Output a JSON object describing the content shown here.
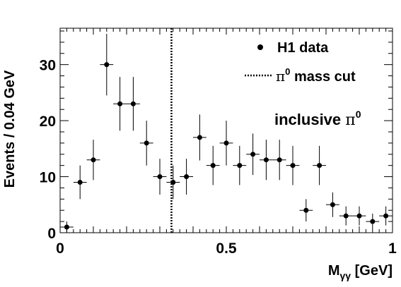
{
  "chart_data": {
    "type": "scatter",
    "title": "",
    "xlabel": "M",
    "xlabel_subscript": "γγ",
    "xlabel_unit": " [GeV]",
    "ylabel": "Events / 0.04 GeV",
    "xlim": [
      0,
      1
    ],
    "ylim": [
      0,
      36.5
    ],
    "x_ticks": [
      0,
      0.5,
      1
    ],
    "x_tick_labels": [
      "0",
      "0.5",
      "1"
    ],
    "y_ticks": [
      0,
      10,
      20,
      30
    ],
    "y_tick_labels": [
      "0",
      "10",
      "20",
      "30"
    ],
    "grid": false,
    "legend_position": "top-right",
    "legend": {
      "data_label": "H1 data",
      "cut_label_symbol": "π",
      "cut_label_superscript": "0",
      "cut_label_text": " mass cut"
    },
    "annotation": {
      "text": "inclusive π",
      "superscript": "0"
    },
    "cut_line_x": 0.335,
    "series": [
      {
        "name": "H1 data",
        "x": [
          0.02,
          0.06,
          0.1,
          0.14,
          0.18,
          0.22,
          0.26,
          0.3,
          0.34,
          0.38,
          0.42,
          0.46,
          0.5,
          0.54,
          0.58,
          0.62,
          0.66,
          0.7,
          0.74,
          0.78,
          0.82,
          0.86,
          0.9,
          0.94,
          0.98
        ],
        "y": [
          1,
          9,
          13,
          30,
          23,
          23,
          16,
          10,
          9,
          10,
          17,
          12,
          16,
          12,
          14,
          13,
          13,
          12,
          4,
          12,
          5,
          3,
          3,
          2,
          3
        ],
        "y_err": [
          1.0,
          3.0,
          3.6,
          5.5,
          4.8,
          4.8,
          4.0,
          3.2,
          3.0,
          3.2,
          4.1,
          3.5,
          4.0,
          3.5,
          3.7,
          3.6,
          3.6,
          3.5,
          2.0,
          3.5,
          2.2,
          1.7,
          1.7,
          1.4,
          1.7
        ],
        "x_err": 0.02
      }
    ]
  }
}
